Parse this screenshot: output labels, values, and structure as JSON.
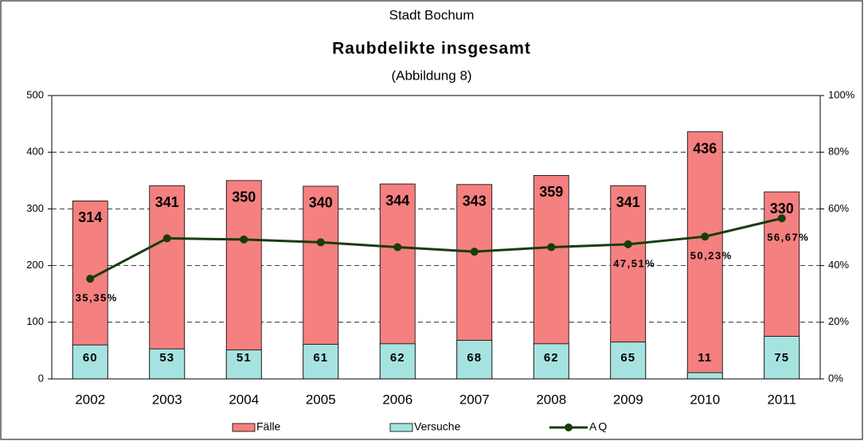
{
  "chart_data": {
    "type": "bar",
    "supertitle": "Stadt Bochum",
    "title": "Raubdelikte insgesamt",
    "subtitle": "(Abbildung 8)",
    "categories": [
      "2002",
      "2003",
      "2004",
      "2005",
      "2006",
      "2007",
      "2008",
      "2009",
      "2010",
      "2011"
    ],
    "series": [
      {
        "name": "Fälle",
        "color": "#f4807f",
        "values": [
          314,
          341,
          350,
          340,
          344,
          343,
          359,
          341,
          436,
          330
        ]
      },
      {
        "name": "Versuche",
        "color": "#a6e3e0",
        "values": [
          60,
          53,
          51,
          61,
          62,
          68,
          62,
          65,
          11,
          75
        ]
      },
      {
        "name": "AQ",
        "color": "#173d0c",
        "type": "line",
        "axis": "y2",
        "values": [
          35.35,
          49.6,
          49.2,
          48.2,
          46.5,
          44.9,
          46.5,
          47.51,
          50.23,
          56.67
        ],
        "value_labels": [
          "35,35%",
          null,
          null,
          null,
          null,
          null,
          null,
          "47,51%",
          "50,23%",
          "56,67%"
        ]
      }
    ],
    "ylim": [
      0,
      500
    ],
    "yticks": [
      0,
      100,
      200,
      300,
      400,
      500
    ],
    "y2lim": [
      0,
      100
    ],
    "y2ticks": [
      {
        "value": 0,
        "label": "0%"
      },
      {
        "value": 20,
        "label": "20%"
      },
      {
        "value": 40,
        "label": "40%"
      },
      {
        "value": 60,
        "label": "60%"
      },
      {
        "value": 80,
        "label": "80%"
      },
      {
        "value": 100,
        "label": "100%"
      }
    ],
    "grid": true,
    "legend": "bottom"
  }
}
